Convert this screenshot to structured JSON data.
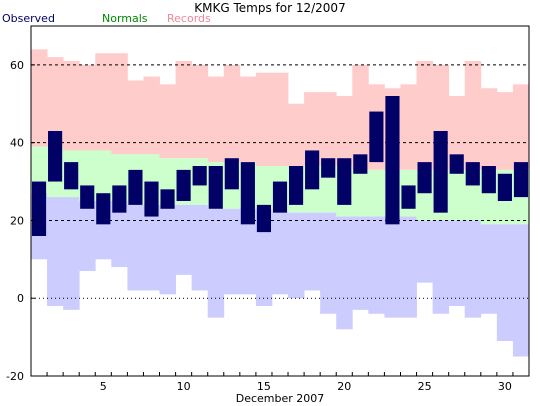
{
  "title": "KMKG Temps for 12/2007",
  "legend": [
    {
      "label": "Observed",
      "color": "#000066"
    },
    {
      "label": "Normals",
      "color": "#008800"
    },
    {
      "label": "Records",
      "color": "#ee8899"
    }
  ],
  "chart_data": {
    "type": "bar",
    "title": "KMKG Temps for 12/2007",
    "xlabel": "December 2007",
    "ylabel": "",
    "x": [
      1,
      2,
      3,
      4,
      5,
      6,
      7,
      8,
      9,
      10,
      11,
      12,
      13,
      14,
      15,
      16,
      17,
      18,
      19,
      20,
      21,
      22,
      23,
      24,
      25,
      26,
      27,
      28,
      29,
      30,
      31
    ],
    "xticks": [
      5,
      10,
      15,
      20,
      25,
      30
    ],
    "xlim": [
      0.5,
      31.5
    ],
    "ylim": [
      -20,
      70
    ],
    "yticks": [
      -20,
      0,
      20,
      40,
      60
    ],
    "grid_y": [
      20,
      40,
      60
    ],
    "colors": {
      "observed": "#000066",
      "normal_low_band": "#ccccff",
      "normal_high_band": "#ccffcc",
      "record_band": "#ffcccc",
      "grid": "#000000"
    },
    "series": [
      {
        "name": "Observed",
        "lows": [
          16,
          30,
          28,
          23,
          19,
          22,
          24,
          21,
          23,
          25,
          29,
          23,
          28,
          19,
          17,
          22,
          24,
          28,
          31,
          24,
          32,
          35,
          19,
          23,
          27,
          22,
          32,
          29,
          27,
          25,
          26
        ],
        "highs": [
          30,
          43,
          35,
          29,
          27,
          29,
          33,
          30,
          28,
          33,
          34,
          34,
          36,
          35,
          24,
          30,
          34,
          38,
          36,
          36,
          37,
          48,
          52,
          29,
          35,
          43,
          37,
          35,
          34,
          32,
          35
        ]
      },
      {
        "name": "Normals",
        "lows": [
          27,
          26,
          26,
          25,
          25,
          25,
          24,
          24,
          24,
          24,
          24,
          23,
          23,
          23,
          23,
          22,
          22,
          22,
          22,
          21,
          21,
          21,
          21,
          21,
          20,
          20,
          20,
          20,
          19,
          19,
          19
        ],
        "highs": [
          39,
          39,
          38,
          38,
          38,
          37,
          37,
          37,
          36,
          36,
          36,
          35,
          35,
          35,
          34,
          34,
          34,
          34,
          34,
          34,
          33,
          33,
          33,
          33,
          33,
          33,
          33,
          33,
          33,
          33,
          33
        ]
      },
      {
        "name": "Records",
        "lows": [
          10,
          -2,
          -3,
          7,
          10,
          8,
          2,
          2,
          1,
          6,
          2,
          -5,
          1,
          1,
          -2,
          1,
          0,
          2,
          -4,
          -8,
          -3,
          -4,
          -5,
          -5,
          4,
          -4,
          -2,
          -5,
          -4,
          -11,
          -15
        ],
        "highs": [
          64,
          62,
          61,
          60,
          63,
          63,
          56,
          57,
          55,
          61,
          60,
          57,
          60,
          57,
          58,
          58,
          50,
          53,
          53,
          52,
          60,
          55,
          54,
          55,
          61,
          60,
          52,
          61,
          54,
          53,
          55
        ]
      }
    ]
  }
}
